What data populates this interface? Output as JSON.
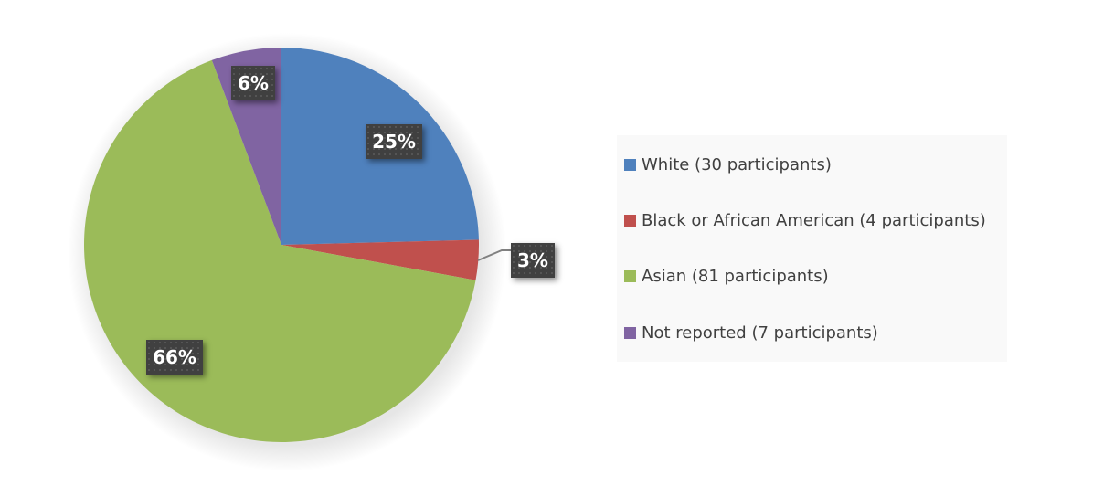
{
  "chart_data": {
    "type": "pie",
    "title": "",
    "categories": [
      "White (30 participants)",
      "Black or African American (4 participants)",
      "Asian (81 participants)",
      "Not reported (7 participants)"
    ],
    "values": [
      30,
      4,
      81,
      7
    ],
    "percent_labels": [
      "25%",
      "3%",
      "66%",
      "6%"
    ],
    "colors": [
      "#4f81bd",
      "#c0504d",
      "#9bbb59",
      "#8064a2"
    ],
    "legend_position": "right",
    "start_angle": "top, clockwise"
  },
  "legend": {
    "items": [
      {
        "label": "White (30 participants)",
        "color": "#4f81bd"
      },
      {
        "label": "Black or African American (4 participants)",
        "color": "#c0504d"
      },
      {
        "label": "Asian (81 participants)",
        "color": "#9bbb59"
      },
      {
        "label": "Not reported (7 participants)",
        "color": "#8064a2"
      }
    ]
  },
  "labels": {
    "white": "25%",
    "black": "3%",
    "asian": "66%",
    "not_reported": "6%"
  }
}
